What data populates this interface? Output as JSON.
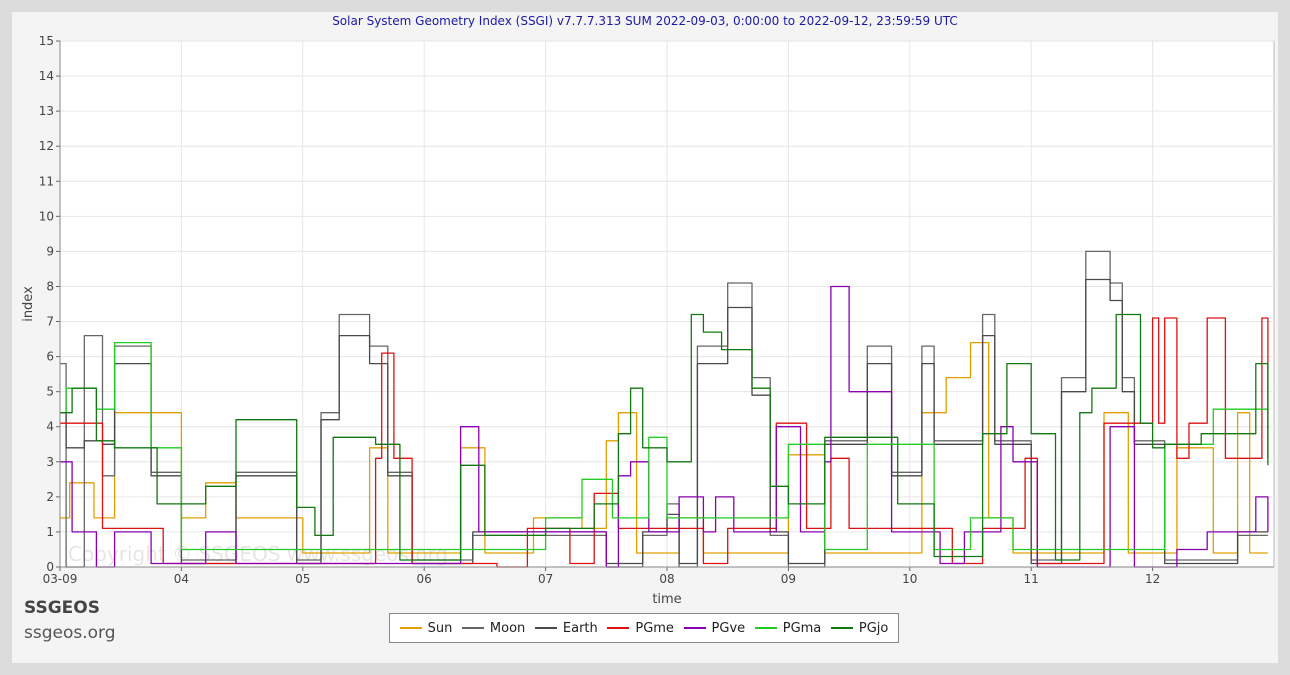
{
  "chart_data": {
    "type": "line",
    "title": "Solar System Geometry Index (SSGI) v7.7.7.313 SUM 2022-09-03,  0:00:00 to 2022-09-12, 23:59:59 UTC",
    "xlabel": "time",
    "ylabel": "index",
    "xlim": [
      0,
      10
    ],
    "ylim": [
      0,
      15
    ],
    "y_ticks": [
      "0",
      "1",
      "2",
      "3",
      "4",
      "5",
      "6",
      "7",
      "8",
      "9",
      "10",
      "11",
      "12",
      "13",
      "14",
      "15"
    ],
    "x_ticks": [
      {
        "value": 0,
        "label": "03-09"
      },
      {
        "value": 1,
        "label": "04"
      },
      {
        "value": 2,
        "label": "05"
      },
      {
        "value": 3,
        "label": "06"
      },
      {
        "value": 4,
        "label": "07"
      },
      {
        "value": 5,
        "label": "08"
      },
      {
        "value": 6,
        "label": "09"
      },
      {
        "value": 7,
        "label": "10"
      },
      {
        "value": 8,
        "label": "11"
      },
      {
        "value": 9,
        "label": "12"
      }
    ],
    "grid": true,
    "legend_position": "bottom-center",
    "watermark": "Copyright © SSGEOS  www.ssgeos.org",
    "series": [
      {
        "name": "Sun",
        "color": "#e0a000",
        "step": true,
        "points": [
          [
            0,
            1.4
          ],
          [
            0.08,
            2.4
          ],
          [
            0.28,
            1.4
          ],
          [
            0.45,
            4.4
          ],
          [
            1.0,
            1.4
          ],
          [
            1.2,
            2.4
          ],
          [
            1.45,
            1.4
          ],
          [
            2.0,
            0.4
          ],
          [
            2.55,
            3.4
          ],
          [
            2.7,
            0.4
          ],
          [
            3.3,
            3.4
          ],
          [
            3.5,
            0.4
          ],
          [
            3.9,
            1.4
          ],
          [
            4.3,
            1.1
          ],
          [
            4.5,
            3.6
          ],
          [
            4.6,
            4.4
          ],
          [
            4.75,
            0.4
          ],
          [
            5.1,
            1.4
          ],
          [
            5.3,
            0.4
          ],
          [
            6.0,
            3.2
          ],
          [
            6.3,
            0.4
          ],
          [
            7.1,
            4.4
          ],
          [
            7.3,
            5.4
          ],
          [
            7.5,
            6.4
          ],
          [
            7.65,
            1.4
          ],
          [
            7.85,
            0.4
          ],
          [
            8.6,
            4.4
          ],
          [
            8.8,
            0.4
          ],
          [
            9.2,
            3.4
          ],
          [
            9.5,
            0.4
          ],
          [
            9.7,
            4.4
          ],
          [
            9.8,
            0.4
          ],
          [
            9.95,
            0.4
          ]
        ]
      },
      {
        "name": "Moon",
        "color": "#666666",
        "step": true,
        "points": [
          [
            0,
            5.8
          ],
          [
            0.05,
            0
          ],
          [
            0.2,
            6.6
          ],
          [
            0.35,
            2.6
          ],
          [
            0.45,
            6.3
          ],
          [
            0.75,
            2.7
          ],
          [
            1.0,
            0.2
          ],
          [
            1.45,
            2.7
          ],
          [
            1.95,
            0.2
          ],
          [
            2.15,
            4.4
          ],
          [
            2.3,
            7.2
          ],
          [
            2.55,
            6.3
          ],
          [
            2.7,
            2.7
          ],
          [
            2.9,
            0.2
          ],
          [
            3.4,
            0.9
          ],
          [
            4.5,
            0
          ],
          [
            4.8,
            0.9
          ],
          [
            5.0,
            1.8
          ],
          [
            5.1,
            0
          ],
          [
            5.25,
            6.3
          ],
          [
            5.5,
            8.1
          ],
          [
            5.7,
            5.4
          ],
          [
            5.85,
            0.9
          ],
          [
            6.0,
            0
          ],
          [
            6.3,
            3.6
          ],
          [
            6.65,
            6.3
          ],
          [
            6.85,
            2.7
          ],
          [
            7.1,
            6.3
          ],
          [
            7.2,
            3.6
          ],
          [
            7.6,
            7.2
          ],
          [
            7.7,
            3.6
          ],
          [
            8.0,
            0.2
          ],
          [
            8.25,
            5.4
          ],
          [
            8.45,
            9.0
          ],
          [
            8.65,
            8.1
          ],
          [
            8.75,
            5.4
          ],
          [
            8.85,
            3.6
          ],
          [
            9.1,
            0.2
          ],
          [
            9.7,
            0.9
          ],
          [
            9.95,
            0.9
          ]
        ]
      },
      {
        "name": "Earth",
        "color": "#4a4a4a",
        "step": true,
        "points": [
          [
            0,
            4.4
          ],
          [
            0.05,
            3.4
          ],
          [
            0.2,
            3.6
          ],
          [
            0.35,
            3.5
          ],
          [
            0.45,
            5.8
          ],
          [
            0.75,
            2.6
          ],
          [
            1.0,
            0.1
          ],
          [
            1.45,
            2.6
          ],
          [
            1.95,
            0.1
          ],
          [
            2.15,
            4.2
          ],
          [
            2.3,
            6.6
          ],
          [
            2.55,
            5.8
          ],
          [
            2.7,
            2.6
          ],
          [
            2.9,
            0.1
          ],
          [
            3.4,
            1.0
          ],
          [
            4.5,
            0.1
          ],
          [
            4.8,
            1.0
          ],
          [
            5.0,
            1.5
          ],
          [
            5.1,
            0.1
          ],
          [
            5.25,
            5.8
          ],
          [
            5.5,
            7.4
          ],
          [
            5.7,
            4.9
          ],
          [
            5.85,
            1.0
          ],
          [
            6.0,
            0.1
          ],
          [
            6.3,
            3.5
          ],
          [
            6.65,
            5.8
          ],
          [
            6.85,
            2.6
          ],
          [
            7.1,
            5.8
          ],
          [
            7.2,
            3.5
          ],
          [
            7.6,
            6.6
          ],
          [
            7.7,
            3.5
          ],
          [
            8.0,
            0.1
          ],
          [
            8.25,
            5.0
          ],
          [
            8.45,
            8.2
          ],
          [
            8.65,
            7.6
          ],
          [
            8.75,
            5.0
          ],
          [
            8.85,
            3.5
          ],
          [
            9.1,
            0.1
          ],
          [
            9.7,
            1.0
          ],
          [
            9.95,
            1.0
          ]
        ]
      },
      {
        "name": "PGme",
        "color": "#dd1111",
        "step": true,
        "points": [
          [
            0,
            4.1
          ],
          [
            0.35,
            1.1
          ],
          [
            0.85,
            0.1
          ],
          [
            2.6,
            3.1
          ],
          [
            2.65,
            6.1
          ],
          [
            2.75,
            3.1
          ],
          [
            2.9,
            0.1
          ],
          [
            3.6,
            0
          ],
          [
            3.85,
            1.1
          ],
          [
            4.2,
            0.1
          ],
          [
            4.4,
            2.1
          ],
          [
            4.6,
            1.1
          ],
          [
            4.8,
            1.1
          ],
          [
            5.3,
            0.1
          ],
          [
            5.5,
            1.1
          ],
          [
            5.9,
            4.1
          ],
          [
            6.15,
            1.1
          ],
          [
            6.35,
            3.1
          ],
          [
            6.5,
            1.1
          ],
          [
            7.0,
            1.1
          ],
          [
            7.35,
            0.1
          ],
          [
            7.6,
            1.1
          ],
          [
            7.95,
            3.1
          ],
          [
            8.05,
            0.1
          ],
          [
            8.6,
            4.1
          ],
          [
            8.9,
            4.1
          ],
          [
            9.0,
            7.1
          ],
          [
            9.05,
            4.1
          ],
          [
            9.1,
            7.1
          ],
          [
            9.2,
            3.1
          ],
          [
            9.3,
            4.1
          ],
          [
            9.45,
            7.1
          ],
          [
            9.6,
            3.1
          ],
          [
            9.9,
            7.1
          ],
          [
            9.95,
            3.1
          ]
        ]
      },
      {
        "name": "PGve",
        "color": "#8a00b0",
        "step": true,
        "points": [
          [
            0,
            3.0
          ],
          [
            0.1,
            1.0
          ],
          [
            0.3,
            0
          ],
          [
            0.45,
            1.0
          ],
          [
            0.75,
            0.1
          ],
          [
            1.2,
            1.0
          ],
          [
            1.45,
            0.1
          ],
          [
            3.3,
            4.0
          ],
          [
            3.45,
            1.0
          ],
          [
            4.35,
            1.0
          ],
          [
            4.5,
            0
          ],
          [
            4.6,
            2.6
          ],
          [
            4.7,
            3.0
          ],
          [
            4.85,
            1.0
          ],
          [
            5.1,
            2.0
          ],
          [
            5.3,
            1.0
          ],
          [
            5.4,
            2.0
          ],
          [
            5.55,
            1.0
          ],
          [
            5.9,
            4.0
          ],
          [
            6.1,
            1.0
          ],
          [
            6.3,
            3.0
          ],
          [
            6.35,
            8.0
          ],
          [
            6.5,
            5.0
          ],
          [
            6.85,
            1.0
          ],
          [
            7.25,
            0.1
          ],
          [
            7.45,
            1.0
          ],
          [
            7.75,
            4.0
          ],
          [
            7.85,
            3.0
          ],
          [
            8.05,
            0
          ],
          [
            8.65,
            4.0
          ],
          [
            8.85,
            0
          ],
          [
            9.2,
            0.5
          ],
          [
            9.45,
            1.0
          ],
          [
            9.85,
            2.0
          ],
          [
            9.95,
            1.0
          ]
        ]
      },
      {
        "name": "PGma",
        "color": "#22cc22",
        "step": true,
        "points": [
          [
            0,
            4.4
          ],
          [
            0.05,
            5.1
          ],
          [
            0.3,
            4.5
          ],
          [
            0.45,
            6.4
          ],
          [
            0.75,
            3.4
          ],
          [
            1.0,
            0.5
          ],
          [
            4.0,
            1.4
          ],
          [
            4.3,
            2.5
          ],
          [
            4.55,
            1.4
          ],
          [
            4.85,
            3.7
          ],
          [
            5.0,
            1.4
          ],
          [
            6.0,
            3.5
          ],
          [
            6.3,
            0.5
          ],
          [
            6.65,
            3.5
          ],
          [
            7.2,
            0.5
          ],
          [
            7.5,
            1.4
          ],
          [
            7.85,
            0.5
          ],
          [
            8.8,
            0.5
          ],
          [
            9.1,
            3.5
          ],
          [
            9.5,
            4.5
          ],
          [
            9.95,
            4.5
          ]
        ]
      },
      {
        "name": "PGjo",
        "color": "#117711",
        "step": true,
        "points": [
          [
            0,
            4.4
          ],
          [
            0.1,
            5.1
          ],
          [
            0.3,
            3.6
          ],
          [
            0.45,
            3.4
          ],
          [
            0.8,
            1.8
          ],
          [
            1.2,
            2.3
          ],
          [
            1.45,
            4.2
          ],
          [
            1.95,
            1.7
          ],
          [
            2.1,
            0.9
          ],
          [
            2.25,
            3.7
          ],
          [
            2.6,
            3.5
          ],
          [
            2.8,
            0.2
          ],
          [
            3.3,
            2.9
          ],
          [
            3.5,
            0.9
          ],
          [
            4.0,
            1.1
          ],
          [
            4.4,
            1.8
          ],
          [
            4.6,
            3.8
          ],
          [
            4.7,
            5.1
          ],
          [
            4.8,
            3.4
          ],
          [
            5.0,
            3.0
          ],
          [
            5.2,
            7.2
          ],
          [
            5.3,
            6.7
          ],
          [
            5.45,
            6.2
          ],
          [
            5.7,
            5.1
          ],
          [
            5.85,
            2.3
          ],
          [
            6.0,
            1.8
          ],
          [
            6.3,
            3.7
          ],
          [
            6.9,
            1.8
          ],
          [
            7.2,
            0.3
          ],
          [
            7.6,
            3.8
          ],
          [
            7.8,
            5.8
          ],
          [
            8.0,
            3.8
          ],
          [
            8.2,
            0.2
          ],
          [
            8.4,
            4.4
          ],
          [
            8.5,
            5.1
          ],
          [
            8.7,
            7.2
          ],
          [
            8.9,
            4.1
          ],
          [
            9.0,
            3.4
          ],
          [
            9.1,
            3.5
          ],
          [
            9.4,
            3.8
          ],
          [
            9.85,
            5.8
          ],
          [
            9.95,
            2.9
          ]
        ]
      }
    ]
  },
  "branding": {
    "name": "SSGEOS",
    "url": "ssgeos.org"
  }
}
